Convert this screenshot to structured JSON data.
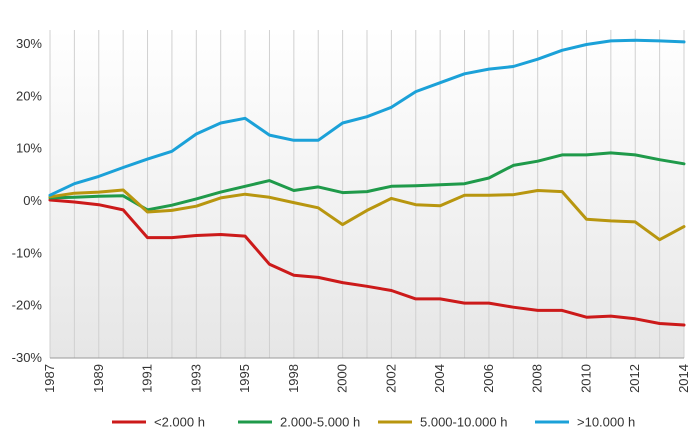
{
  "chart_data": {
    "type": "line",
    "title": "",
    "xlabel": "",
    "ylabel": "",
    "ylim": [
      -30,
      30
    ],
    "yticks": [
      -30,
      -20,
      -10,
      0,
      10,
      20,
      30
    ],
    "ytick_labels": [
      "-30%",
      "-20%",
      "-10%",
      "0%",
      "10%",
      "20%",
      "30%"
    ],
    "x": [
      "1987",
      "1988",
      "1989",
      "1990",
      "1991",
      "1992",
      "1993",
      "1994",
      "1995",
      "1996",
      "1998",
      "1999",
      "2000",
      "2001",
      "2002",
      "2003",
      "2004",
      "2005",
      "2006",
      "2007",
      "2008",
      "2009",
      "2010",
      "2011",
      "2012",
      "2013",
      "2014"
    ],
    "xtick_labels": [
      "1987",
      "1989",
      "1991",
      "1993",
      "1995",
      "1998",
      "2000",
      "2002",
      "2004",
      "2006",
      "2008",
      "2010",
      "2012",
      "2014"
    ],
    "legend_position": "bottom",
    "series": [
      {
        "name": "<2.000 h",
        "color": "#cc1a1a",
        "values": [
          0.2,
          -0.2,
          -0.7,
          -1.7,
          -7.0,
          -7.0,
          -6.6,
          -6.4,
          -6.7,
          -12.1,
          -14.2,
          -14.6,
          -15.6,
          -16.3,
          -17.1,
          -18.7,
          -18.7,
          -19.5,
          -19.5,
          -20.3,
          -20.9,
          -20.9,
          -22.2,
          -22.0,
          -22.5,
          -23.4,
          -23.7
        ]
      },
      {
        "name": "2.000-5.000 h",
        "color": "#1f9a4a",
        "values": [
          0.6,
          0.7,
          0.9,
          1.0,
          -1.7,
          -0.8,
          0.4,
          1.7,
          2.8,
          3.9,
          2.0,
          2.7,
          1.6,
          1.8,
          2.8,
          2.9,
          3.1,
          3.3,
          4.4,
          6.8,
          7.6,
          8.8,
          8.8,
          9.2,
          8.8,
          7.9,
          7.1
        ]
      },
      {
        "name": "5.000-10.000 h",
        "color": "#b8960f",
        "values": [
          0.8,
          1.5,
          1.7,
          2.1,
          -2.1,
          -1.8,
          -1.0,
          0.6,
          1.3,
          0.7,
          -0.3,
          -1.3,
          -4.5,
          -1.8,
          0.5,
          -0.7,
          -0.9,
          1.1,
          1.1,
          1.2,
          2.0,
          1.8,
          -3.5,
          -3.8,
          -4.0,
          -7.4,
          -4.9
        ]
      },
      {
        "name": ">10.000 h",
        "color": "#1ba1d8",
        "values": [
          1.1,
          3.3,
          4.7,
          6.4,
          8.0,
          9.5,
          12.8,
          14.9,
          15.8,
          12.6,
          11.6,
          11.6,
          14.9,
          16.1,
          17.9,
          20.9,
          22.6,
          24.3,
          25.2,
          25.7,
          27.1,
          28.8,
          29.9,
          30.6,
          30.7,
          30.6,
          30.4
        ]
      }
    ]
  }
}
